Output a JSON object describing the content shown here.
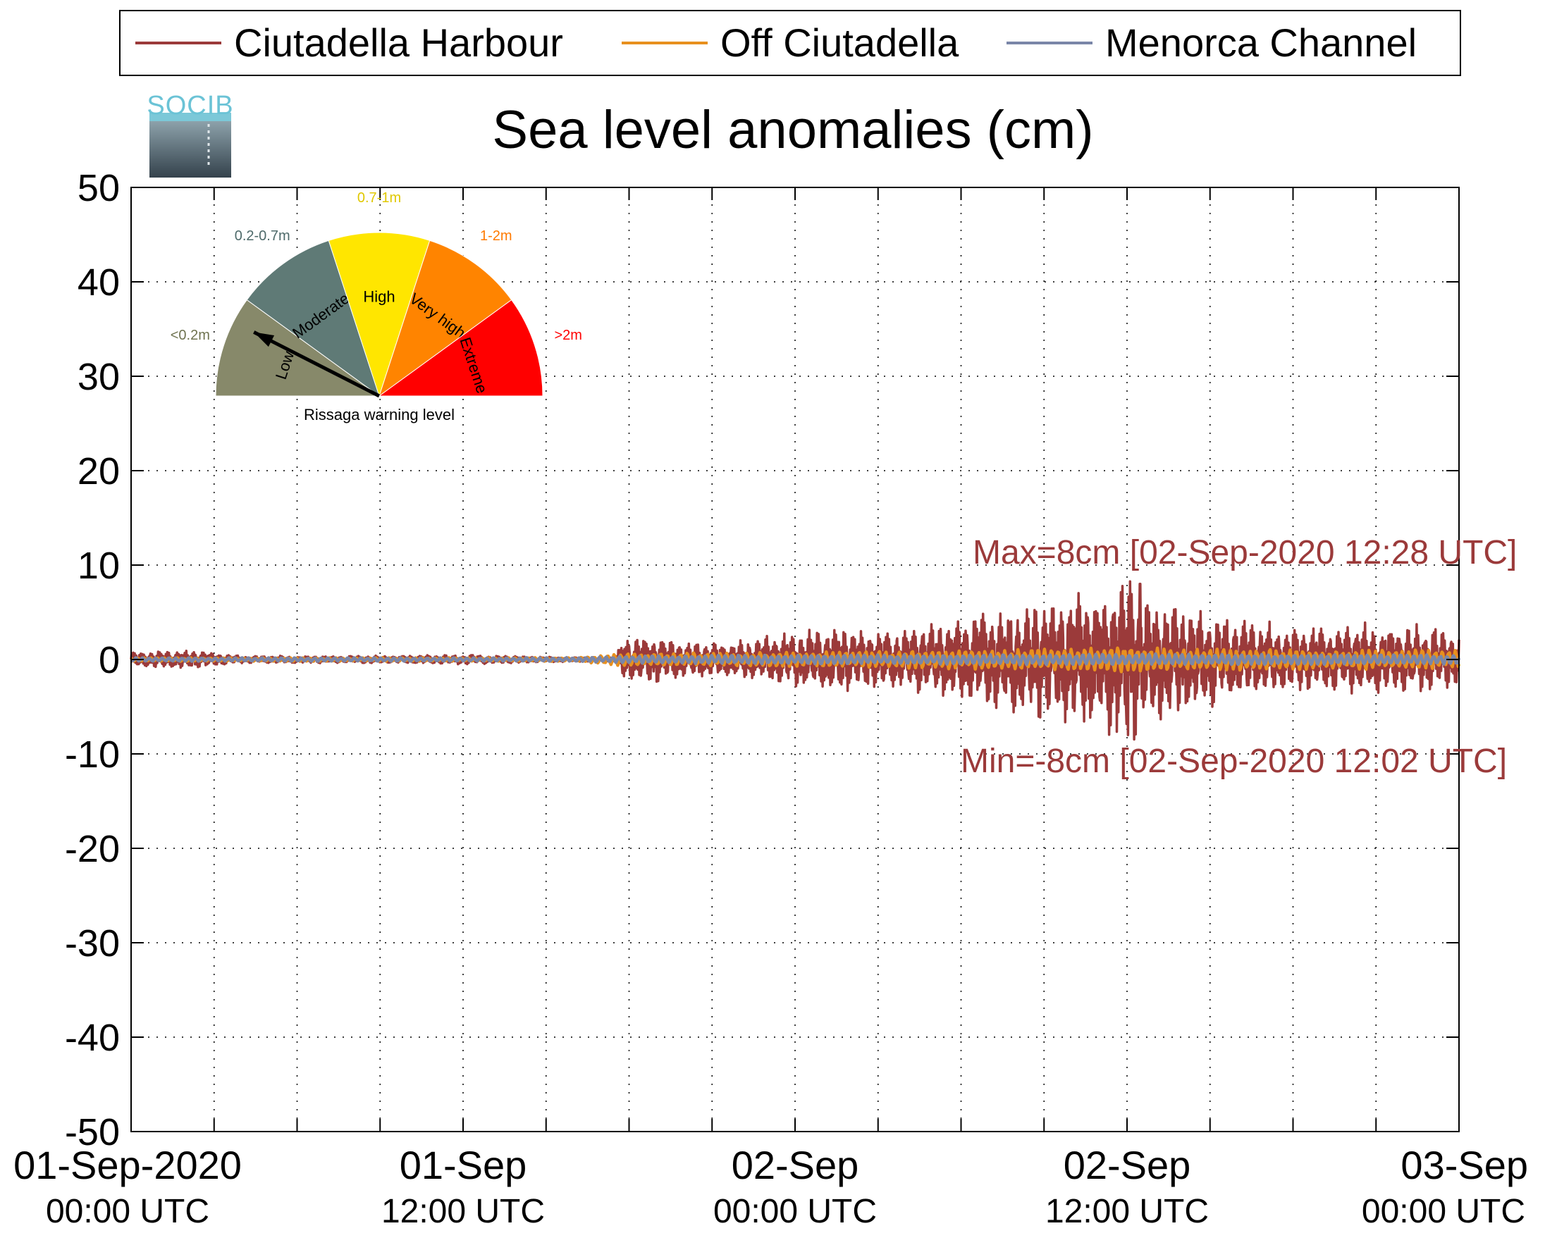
{
  "chart_data": {
    "type": "line",
    "title": "Sea level anomalies (cm)",
    "xlabel": "",
    "ylabel": "",
    "ylim": [
      -50,
      50
    ],
    "y_ticks": [
      50,
      40,
      30,
      20,
      10,
      0,
      -10,
      -20,
      -30,
      -40,
      -50
    ],
    "y_tick_labels": [
      "50",
      "40",
      "30",
      "20",
      "10",
      "0",
      "-10",
      "-20",
      "-30",
      "-40",
      "-50"
    ],
    "xlim_hours": [
      0,
      48
    ],
    "x_ticks": [
      {
        "hour": 0,
        "line1": "01-Sep-2020",
        "line2": "00:00 UTC"
      },
      {
        "hour": 12,
        "line1": "01-Sep",
        "line2": "12:00 UTC"
      },
      {
        "hour": 24,
        "line1": "02-Sep",
        "line2": "00:00 UTC"
      },
      {
        "hour": 36,
        "line1": "02-Sep",
        "line2": "12:00 UTC"
      },
      {
        "hour": 48,
        "line1": "03-Sep",
        "line2": "00:00 UTC"
      }
    ],
    "grid": true,
    "legend_position": "top",
    "series": [
      {
        "name": "Ciutadella Harbour",
        "color": "#9b3a3a",
        "amplitude_envelope": {
          "hours": [
            0,
            2,
            4,
            8,
            12,
            16,
            17.5,
            17.8,
            19,
            20,
            22,
            23.5,
            25,
            28,
            30,
            33,
            35,
            36,
            37,
            39,
            41,
            43,
            45,
            47,
            48
          ],
          "amplitude_cm": [
            0.6,
            0.8,
            0.3,
            0.3,
            0.4,
            0.2,
            0.2,
            1.8,
            2.0,
            1.5,
            1.5,
            2.2,
            2.8,
            2.5,
            3.5,
            5.0,
            6.0,
            7.2,
            5.5,
            4.0,
            3.0,
            2.6,
            3.0,
            2.8,
            2.2
          ]
        }
      },
      {
        "name": "Off Ciutadella",
        "color": "#e8901e",
        "amplitude_envelope": {
          "hours": [
            0,
            16,
            17.8,
            24,
            30,
            35,
            36,
            38,
            42,
            48
          ],
          "amplitude_cm": [
            0.2,
            0.2,
            0.7,
            0.8,
            1.0,
            1.3,
            1.5,
            1.2,
            1.1,
            1.0
          ]
        }
      },
      {
        "name": "Menorca Channel",
        "color": "#7a86a8",
        "amplitude_envelope": {
          "hours": [
            0,
            16,
            17.8,
            24,
            36,
            48
          ],
          "amplitude_cm": [
            0.2,
            0.2,
            0.4,
            0.5,
            0.6,
            0.5
          ]
        }
      }
    ],
    "annotations": {
      "max": {
        "text": "Max=8cm [02-Sep-2020 12:28 UTC]",
        "hour": 36.47,
        "value_cm": 8
      },
      "min": {
        "text": "Min=-8cm [02-Sep-2020 12:02 UTC]",
        "hour": 36.03,
        "value_cm": -8
      }
    }
  },
  "logo": {
    "text": "SOCIB"
  },
  "gauge": {
    "title": "Rissaga warning level",
    "segments": [
      {
        "label": "Low",
        "range": "<0.2m",
        "color": "#87896a",
        "range_color": "#6f7350"
      },
      {
        "label": "Moderate",
        "range": "0.2-0.7m",
        "color": "#5f7a76",
        "range_color": "#4e6a6a"
      },
      {
        "label": "High",
        "range": "0.7-1m",
        "color": "#ffe600",
        "range_color": "#e0c800"
      },
      {
        "label": "Very high",
        "range": "1-2m",
        "color": "#ff8400",
        "range_color": "#ff7a00"
      },
      {
        "label": "Extreme",
        "range": ">2m",
        "color": "#ff0000",
        "range_color": "#ff0000"
      }
    ],
    "needle_segment": "Low"
  }
}
